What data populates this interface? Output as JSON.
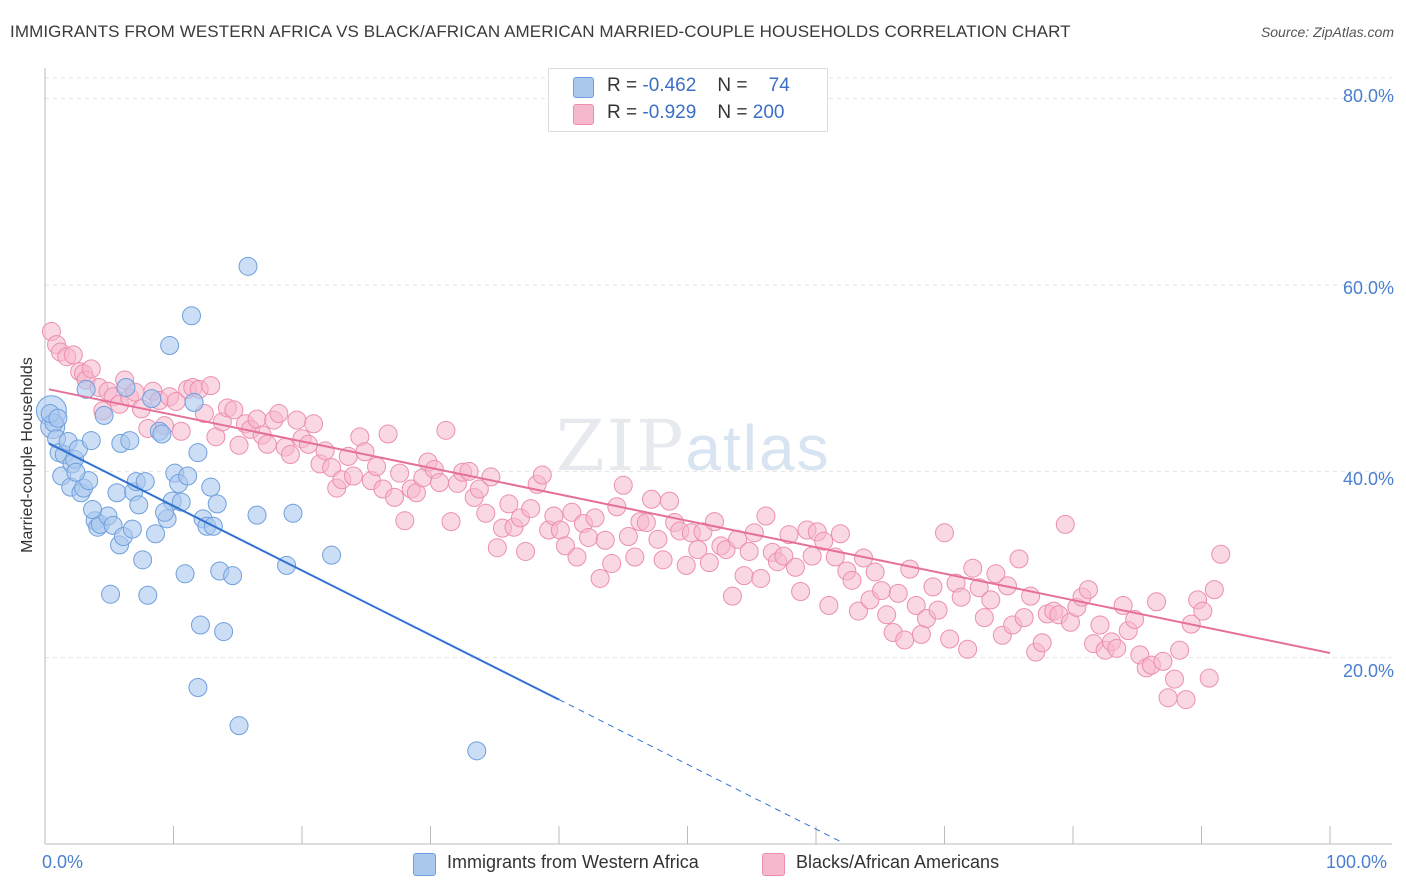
{
  "title": "IMMIGRANTS FROM WESTERN AFRICA VS BLACK/AFRICAN AMERICAN MARRIED-COUPLE HOUSEHOLDS CORRELATION CHART",
  "source": "Source: ZipAtlas.com",
  "watermark": {
    "zip": "ZIP",
    "atlas": "atlas"
  },
  "colors": {
    "blue_fill": "#aac8ee",
    "blue_stroke": "#6f9fdc",
    "blue_line": "#2f72d2",
    "pink_fill": "#f6b8cc",
    "pink_stroke": "#ec8fae",
    "pink_line": "#e5709a",
    "tick_text": "#4a7fd0",
    "grid": "#e3e3e3"
  },
  "stats": [
    {
      "r_label": "R =",
      "r_value": "-0.462",
      "n_label": "N =",
      "n_value": "74"
    },
    {
      "r_label": "R =",
      "r_value": "-0.929",
      "n_label": "N =",
      "n_value": "200"
    }
  ],
  "chart_data": {
    "type": "scatter",
    "title": "IMMIGRANTS FROM WESTERN AFRICA VS BLACK/AFRICAN AMERICAN MARRIED-COUPLE HOUSEHOLDS CORRELATION CHART",
    "xlabel": "",
    "ylabel": "Married-couple Households",
    "xlim": [
      0,
      100
    ],
    "ylim": [
      0,
      82
    ],
    "x_tick_labels": [
      "0.0%",
      "100.0%"
    ],
    "y_ticks": [
      20,
      40,
      60,
      80
    ],
    "y_tick_labels": [
      "20.0%",
      "40.0%",
      "60.0%",
      "80.0%"
    ],
    "legend": [
      "Immigrants from Western Africa",
      "Blacks/African Americans"
    ],
    "series": [
      {
        "name": "Immigrants from Western Africa",
        "r": -0.462,
        "n": 74,
        "trend": {
          "x0": 0.3,
          "y0": 43.0,
          "x1": 40.0,
          "y1": 15.5,
          "dash_to_x": 62.0,
          "dash_to_y": 0.2
        },
        "points": [
          [
            0.5,
            46.5
          ],
          [
            0.6,
            44.8
          ],
          [
            0.7,
            45.2
          ],
          [
            0.9,
            43.5
          ],
          [
            1.1,
            42.0
          ],
          [
            1.3,
            39.5
          ],
          [
            1.5,
            41.8
          ],
          [
            1.8,
            43.2
          ],
          [
            2.0,
            38.3
          ],
          [
            2.1,
            40.8
          ],
          [
            2.3,
            41.3
          ],
          [
            2.6,
            42.4
          ],
          [
            2.8,
            37.7
          ],
          [
            3.0,
            38.2
          ],
          [
            3.2,
            48.8
          ],
          [
            3.4,
            39.0
          ],
          [
            3.6,
            43.3
          ],
          [
            3.9,
            34.7
          ],
          [
            4.1,
            34.0
          ],
          [
            4.3,
            34.3
          ],
          [
            4.6,
            46.0
          ],
          [
            4.9,
            35.2
          ],
          [
            5.1,
            26.8
          ],
          [
            5.3,
            34.2
          ],
          [
            5.6,
            37.7
          ],
          [
            5.8,
            32.1
          ],
          [
            5.9,
            43.0
          ],
          [
            6.1,
            33.0
          ],
          [
            6.3,
            49.0
          ],
          [
            6.6,
            43.3
          ],
          [
            6.9,
            37.8
          ],
          [
            7.1,
            38.9
          ],
          [
            7.3,
            36.4
          ],
          [
            7.6,
            30.5
          ],
          [
            7.8,
            38.9
          ],
          [
            8.0,
            26.7
          ],
          [
            8.3,
            47.8
          ],
          [
            8.6,
            33.3
          ],
          [
            8.9,
            44.3
          ],
          [
            9.1,
            44.0
          ],
          [
            9.5,
            34.9
          ],
          [
            9.7,
            53.5
          ],
          [
            9.9,
            36.8
          ],
          [
            10.1,
            39.8
          ],
          [
            10.4,
            38.7
          ],
          [
            10.6,
            36.7
          ],
          [
            10.9,
            29.0
          ],
          [
            11.1,
            39.5
          ],
          [
            11.4,
            56.7
          ],
          [
            11.6,
            47.4
          ],
          [
            11.9,
            42.0
          ],
          [
            11.9,
            16.8
          ],
          [
            12.1,
            23.5
          ],
          [
            12.3,
            34.9
          ],
          [
            12.6,
            34.1
          ],
          [
            12.9,
            38.3
          ],
          [
            13.1,
            34.1
          ],
          [
            13.4,
            36.5
          ],
          [
            13.6,
            29.3
          ],
          [
            13.9,
            22.8
          ],
          [
            14.6,
            28.8
          ],
          [
            15.1,
            12.7
          ],
          [
            15.8,
            62.0
          ],
          [
            16.5,
            35.3
          ],
          [
            18.8,
            29.9
          ],
          [
            19.3,
            35.5
          ],
          [
            22.3,
            31.0
          ],
          [
            33.6,
            10.0
          ],
          [
            0.4,
            46.2
          ],
          [
            1.0,
            45.7
          ],
          [
            2.4,
            39.9
          ],
          [
            3.7,
            35.9
          ],
          [
            6.8,
            33.8
          ],
          [
            9.3,
            35.6
          ]
        ]
      },
      {
        "name": "Blacks/African Americans",
        "r": -0.929,
        "n": 200,
        "trend": {
          "x0": 0.3,
          "y0": 48.8,
          "x1": 100.0,
          "y1": 20.5
        },
        "points": [
          [
            0.5,
            55.0
          ],
          [
            0.9,
            53.6
          ],
          [
            1.2,
            52.8
          ],
          [
            1.7,
            52.3
          ],
          [
            2.2,
            52.5
          ],
          [
            2.7,
            50.7
          ],
          [
            3.0,
            50.5
          ],
          [
            3.2,
            49.8
          ],
          [
            3.6,
            51.0
          ],
          [
            4.2,
            49.0
          ],
          [
            4.5,
            46.5
          ],
          [
            4.9,
            48.6
          ],
          [
            5.3,
            48.0
          ],
          [
            5.8,
            47.2
          ],
          [
            6.2,
            49.8
          ],
          [
            6.6,
            47.9
          ],
          [
            7.0,
            48.5
          ],
          [
            7.5,
            46.7
          ],
          [
            8.0,
            44.6
          ],
          [
            8.4,
            48.6
          ],
          [
            8.9,
            47.6
          ],
          [
            9.3,
            44.9
          ],
          [
            9.7,
            48.0
          ],
          [
            10.2,
            47.5
          ],
          [
            10.6,
            44.3
          ],
          [
            11.1,
            48.8
          ],
          [
            11.5,
            49.0
          ],
          [
            12.0,
            48.8
          ],
          [
            12.4,
            46.2
          ],
          [
            12.9,
            49.2
          ],
          [
            13.3,
            43.7
          ],
          [
            13.8,
            45.3
          ],
          [
            14.2,
            46.8
          ],
          [
            14.7,
            46.6
          ],
          [
            15.1,
            42.8
          ],
          [
            15.6,
            45.1
          ],
          [
            16.0,
            44.5
          ],
          [
            16.5,
            45.6
          ],
          [
            16.9,
            43.9
          ],
          [
            17.3,
            42.9
          ],
          [
            17.8,
            45.5
          ],
          [
            18.2,
            46.2
          ],
          [
            18.7,
            42.6
          ],
          [
            19.1,
            41.8
          ],
          [
            19.6,
            45.5
          ],
          [
            20.0,
            43.5
          ],
          [
            20.5,
            42.9
          ],
          [
            20.9,
            45.1
          ],
          [
            21.4,
            40.8
          ],
          [
            21.8,
            42.2
          ],
          [
            22.3,
            40.4
          ],
          [
            22.7,
            38.2
          ],
          [
            23.1,
            39.1
          ],
          [
            23.6,
            41.6
          ],
          [
            24.0,
            39.5
          ],
          [
            24.5,
            43.7
          ],
          [
            24.9,
            42.1
          ],
          [
            25.4,
            39.0
          ],
          [
            25.8,
            40.5
          ],
          [
            26.3,
            38.1
          ],
          [
            26.7,
            44.0
          ],
          [
            27.2,
            37.2
          ],
          [
            27.6,
            39.8
          ],
          [
            28.0,
            34.7
          ],
          [
            28.5,
            38.1
          ],
          [
            28.9,
            37.7
          ],
          [
            29.4,
            39.3
          ],
          [
            29.8,
            41.0
          ],
          [
            30.3,
            40.2
          ],
          [
            30.7,
            38.8
          ],
          [
            31.2,
            44.4
          ],
          [
            31.6,
            34.6
          ],
          [
            32.1,
            38.7
          ],
          [
            32.5,
            39.9
          ],
          [
            33.0,
            40.0
          ],
          [
            33.4,
            37.2
          ],
          [
            33.8,
            38.1
          ],
          [
            34.3,
            35.5
          ],
          [
            34.7,
            39.4
          ],
          [
            35.2,
            31.8
          ],
          [
            35.6,
            33.9
          ],
          [
            36.1,
            36.5
          ],
          [
            36.5,
            34.0
          ],
          [
            37.0,
            35.0
          ],
          [
            37.4,
            31.4
          ],
          [
            37.8,
            36.0
          ],
          [
            38.3,
            38.6
          ],
          [
            38.7,
            39.6
          ],
          [
            39.2,
            33.7
          ],
          [
            39.6,
            35.2
          ],
          [
            40.1,
            33.7
          ],
          [
            40.5,
            32.0
          ],
          [
            41.0,
            35.6
          ],
          [
            41.4,
            30.8
          ],
          [
            41.9,
            34.4
          ],
          [
            42.3,
            32.9
          ],
          [
            42.8,
            35.0
          ],
          [
            43.2,
            28.5
          ],
          [
            43.6,
            32.6
          ],
          [
            44.1,
            30.1
          ],
          [
            44.5,
            36.2
          ],
          [
            45.0,
            38.5
          ],
          [
            45.4,
            33.0
          ],
          [
            45.9,
            30.8
          ],
          [
            46.3,
            34.6
          ],
          [
            46.8,
            34.5
          ],
          [
            47.2,
            37.0
          ],
          [
            47.7,
            32.7
          ],
          [
            48.1,
            30.5
          ],
          [
            48.6,
            36.8
          ],
          [
            49.0,
            34.5
          ],
          [
            49.4,
            33.6
          ],
          [
            49.9,
            29.9
          ],
          [
            50.3,
            33.4
          ],
          [
            50.8,
            31.6
          ],
          [
            51.2,
            33.5
          ],
          [
            51.7,
            30.2
          ],
          [
            52.1,
            34.6
          ],
          [
            52.6,
            32.0
          ],
          [
            53.0,
            31.6
          ],
          [
            53.5,
            26.6
          ],
          [
            53.9,
            32.7
          ],
          [
            54.4,
            28.8
          ],
          [
            54.8,
            31.4
          ],
          [
            55.2,
            33.4
          ],
          [
            55.7,
            28.5
          ],
          [
            56.1,
            35.2
          ],
          [
            56.6,
            31.3
          ],
          [
            57.0,
            30.3
          ],
          [
            57.5,
            30.9
          ],
          [
            57.9,
            33.2
          ],
          [
            58.4,
            29.7
          ],
          [
            58.8,
            27.1
          ],
          [
            59.3,
            33.7
          ],
          [
            59.7,
            30.9
          ],
          [
            60.1,
            33.5
          ],
          [
            60.6,
            32.5
          ],
          [
            61.0,
            25.6
          ],
          [
            61.5,
            30.8
          ],
          [
            61.9,
            33.3
          ],
          [
            62.4,
            29.3
          ],
          [
            62.8,
            28.3
          ],
          [
            63.3,
            25.0
          ],
          [
            63.7,
            30.7
          ],
          [
            64.2,
            26.2
          ],
          [
            64.6,
            29.2
          ],
          [
            65.1,
            27.2
          ],
          [
            65.5,
            24.6
          ],
          [
            66.0,
            22.7
          ],
          [
            66.4,
            26.9
          ],
          [
            66.9,
            21.9
          ],
          [
            67.3,
            29.5
          ],
          [
            67.8,
            25.6
          ],
          [
            68.2,
            22.5
          ],
          [
            68.6,
            24.2
          ],
          [
            69.1,
            27.6
          ],
          [
            69.5,
            25.1
          ],
          [
            70.0,
            33.4
          ],
          [
            70.4,
            22.0
          ],
          [
            70.9,
            28.0
          ],
          [
            71.3,
            26.5
          ],
          [
            71.8,
            20.9
          ],
          [
            72.2,
            29.6
          ],
          [
            72.7,
            27.5
          ],
          [
            73.1,
            24.3
          ],
          [
            73.6,
            26.2
          ],
          [
            74.0,
            29.0
          ],
          [
            74.5,
            22.4
          ],
          [
            74.9,
            27.7
          ],
          [
            75.3,
            23.5
          ],
          [
            75.8,
            30.6
          ],
          [
            76.2,
            24.3
          ],
          [
            76.7,
            26.6
          ],
          [
            77.1,
            20.6
          ],
          [
            77.6,
            21.6
          ],
          [
            78.0,
            24.7
          ],
          [
            78.5,
            25.0
          ],
          [
            78.9,
            24.6
          ],
          [
            79.4,
            34.3
          ],
          [
            79.8,
            23.8
          ],
          [
            80.3,
            25.4
          ],
          [
            80.7,
            26.5
          ],
          [
            81.2,
            27.3
          ],
          [
            81.6,
            21.5
          ],
          [
            82.1,
            23.5
          ],
          [
            82.5,
            20.8
          ],
          [
            83.0,
            21.7
          ],
          [
            83.4,
            21.0
          ],
          [
            83.9,
            25.6
          ],
          [
            84.3,
            22.9
          ],
          [
            84.8,
            24.1
          ],
          [
            85.2,
            20.3
          ],
          [
            85.7,
            18.9
          ],
          [
            86.1,
            19.2
          ],
          [
            86.5,
            26.0
          ],
          [
            87.0,
            19.6
          ],
          [
            87.4,
            15.7
          ],
          [
            87.9,
            17.7
          ],
          [
            88.3,
            20.8
          ],
          [
            88.8,
            15.5
          ],
          [
            89.2,
            23.6
          ],
          [
            89.7,
            26.2
          ],
          [
            90.1,
            25.0
          ],
          [
            90.6,
            17.8
          ],
          [
            91.0,
            27.3
          ],
          [
            91.5,
            31.1
          ]
        ]
      }
    ]
  }
}
